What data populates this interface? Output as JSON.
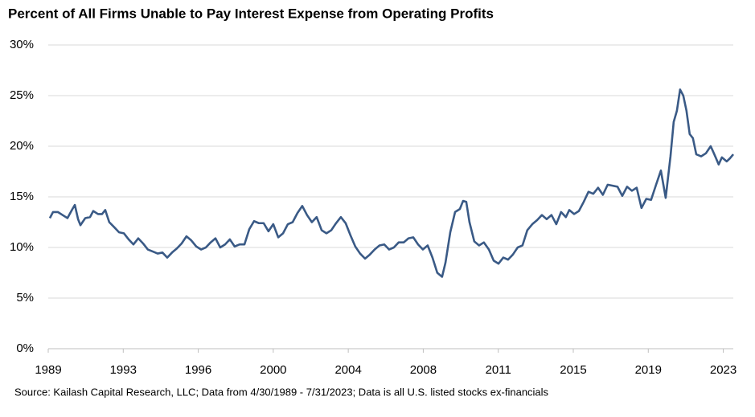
{
  "chart_data": {
    "type": "line",
    "title": "Percent of All Firms Unable to Pay Interest Expense from Operating Profits",
    "source": "Source: Kailash Capital Research, LLC; Data from 4/30/1989 - 7/31/2023; Data is all U.S. listed stocks ex-financials",
    "x": [
      1989.41,
      1989.57,
      1989.81,
      1990.05,
      1990.29,
      1990.54,
      1990.66,
      1990.82,
      1990.94,
      1991.18,
      1991.42,
      1991.58,
      1991.82,
      1992.02,
      1992.18,
      1992.38,
      1992.63,
      1992.87,
      1993.11,
      1993.35,
      1993.59,
      1993.83,
      1994.07,
      1994.31,
      1994.56,
      1994.8,
      1995.04,
      1995.28,
      1995.52,
      1995.76,
      1996.0,
      1996.24,
      1996.48,
      1996.73,
      1996.97,
      1997.21,
      1997.45,
      1997.69,
      1997.93,
      1998.17,
      1998.41,
      1998.65,
      1998.9,
      1999.14,
      1999.38,
      1999.62,
      1999.86,
      2000.1,
      2000.34,
      2000.58,
      2000.83,
      2001.07,
      2001.31,
      2001.55,
      2001.79,
      2002.03,
      2002.27,
      2002.51,
      2002.75,
      2003.0,
      2003.24,
      2003.48,
      2003.72,
      2003.96,
      2004.2,
      2004.44,
      2004.68,
      2004.92,
      2005.17,
      2005.41,
      2005.65,
      2005.89,
      2006.13,
      2006.37,
      2006.61,
      2006.85,
      2007.1,
      2007.34,
      2007.58,
      2007.82,
      2008.06,
      2008.3,
      2008.54,
      2008.78,
      2009.02,
      2009.19,
      2009.43,
      2009.67,
      2009.91,
      2010.07,
      2010.23,
      2010.39,
      2010.63,
      2010.87,
      2011.11,
      2011.36,
      2011.6,
      2011.84,
      2012.08,
      2012.32,
      2012.56,
      2012.8,
      2013.04,
      2013.28,
      2013.53,
      2013.77,
      2014.01,
      2014.25,
      2014.49,
      2014.73,
      2014.97,
      2015.21,
      2015.38,
      2015.62,
      2015.86,
      2016.1,
      2016.34,
      2016.58,
      2016.82,
      2017.06,
      2017.3,
      2017.55,
      2017.79,
      2018.03,
      2018.27,
      2018.51,
      2018.75,
      2018.99,
      2019.23,
      2019.47,
      2019.72,
      2019.96,
      2020.2,
      2020.44,
      2020.6,
      2020.76,
      2020.92,
      2021.08,
      2021.24,
      2021.4,
      2021.56,
      2021.73,
      2021.97,
      2022.21,
      2022.45,
      2022.61,
      2022.85,
      2023.01,
      2023.25,
      2023.41,
      2023.58
    ],
    "series": [
      {
        "color": "#3a5a86",
        "values": [
          12.9,
          13.5,
          13.5,
          13.2,
          12.9,
          13.8,
          14.2,
          12.8,
          12.2,
          12.9,
          13.0,
          13.6,
          13.3,
          13.3,
          13.7,
          12.5,
          12.0,
          11.5,
          11.4,
          10.8,
          10.3,
          10.9,
          10.4,
          9.8,
          9.6,
          9.4,
          9.5,
          9.0,
          9.5,
          9.9,
          10.4,
          11.1,
          10.7,
          10.1,
          9.8,
          10.0,
          10.5,
          10.9,
          10.0,
          10.3,
          10.8,
          10.1,
          10.3,
          10.3,
          11.8,
          12.6,
          12.4,
          12.4,
          11.6,
          12.3,
          11.0,
          11.4,
          12.3,
          12.5,
          13.4,
          14.1,
          13.2,
          12.5,
          13.0,
          11.7,
          11.4,
          11.7,
          12.4,
          13.0,
          12.4,
          11.2,
          10.1,
          9.4,
          8.9,
          9.3,
          9.8,
          10.2,
          10.3,
          9.8,
          10.0,
          10.5,
          10.5,
          10.9,
          11.0,
          10.3,
          9.8,
          10.2,
          9.0,
          7.5,
          7.1,
          8.5,
          11.5,
          13.5,
          13.8,
          14.6,
          14.5,
          12.5,
          10.6,
          10.2,
          10.5,
          9.8,
          8.7,
          8.4,
          9.0,
          8.8,
          9.3,
          10.0,
          10.2,
          11.7,
          12.3,
          12.7,
          13.2,
          12.8,
          13.2,
          12.3,
          13.5,
          13.0,
          13.7,
          13.3,
          13.6,
          14.5,
          15.5,
          15.3,
          15.9,
          15.2,
          16.2,
          16.1,
          16.0,
          15.1,
          16.0,
          15.6,
          15.9,
          13.9,
          14.8,
          14.7,
          16.2,
          17.6,
          14.9,
          19.0,
          22.4,
          23.5,
          25.6,
          25.0,
          23.5,
          21.2,
          20.8,
          19.2,
          19.0,
          19.3,
          20.0,
          19.3,
          18.2,
          18.9,
          18.5,
          18.8,
          19.2
        ]
      }
    ],
    "xlim": [
      1989.33,
      2023.58
    ],
    "xticks": [
      {
        "value": 1989.33,
        "label": "1989"
      },
      {
        "value": 1993.08,
        "label": "1993"
      },
      {
        "value": 1996.83,
        "label": "1996"
      },
      {
        "value": 2000.58,
        "label": "2000"
      },
      {
        "value": 2004.33,
        "label": "2004"
      },
      {
        "value": 2008.08,
        "label": "2008"
      },
      {
        "value": 2011.83,
        "label": "2011"
      },
      {
        "value": 2015.58,
        "label": "2015"
      },
      {
        "value": 2019.33,
        "label": "2019"
      },
      {
        "value": 2023.08,
        "label": "2023"
      }
    ],
    "ylim": [
      0,
      30
    ],
    "yticks": [
      {
        "value": 0,
        "label": "0%"
      },
      {
        "value": 5,
        "label": "5%"
      },
      {
        "value": 10,
        "label": "10%"
      },
      {
        "value": 15,
        "label": "15%"
      },
      {
        "value": 20,
        "label": "20%"
      },
      {
        "value": 25,
        "label": "25%"
      },
      {
        "value": 30,
        "label": "30%"
      }
    ],
    "grid": true
  }
}
